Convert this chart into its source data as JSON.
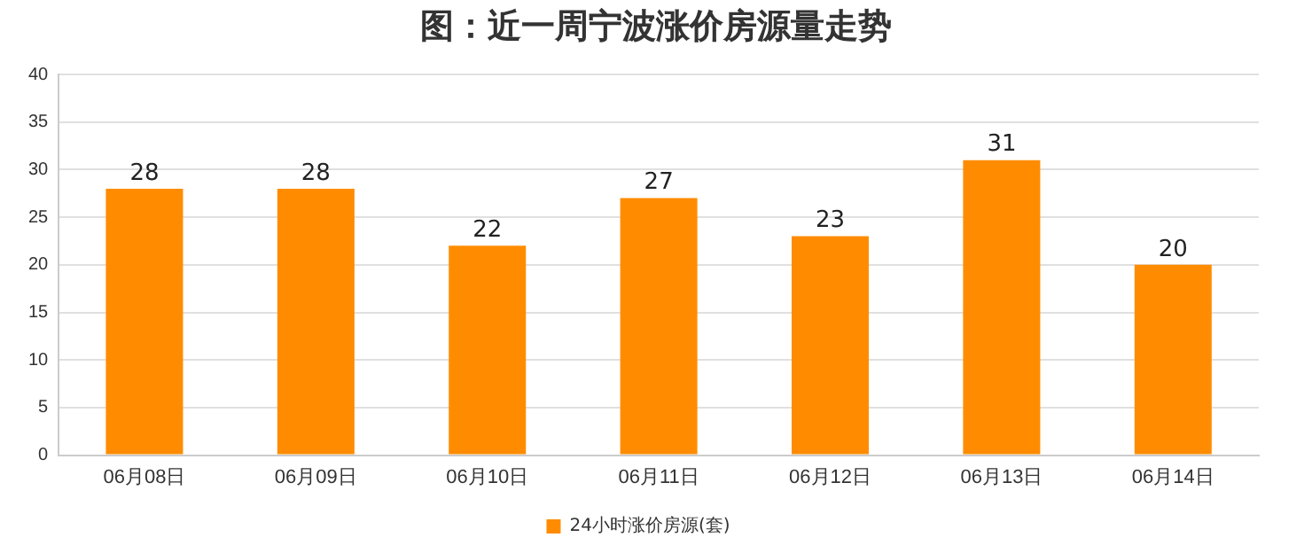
{
  "chart_data": {
    "type": "bar",
    "title": "图：近一周宁波涨价房源量走势",
    "categories": [
      "06月08日",
      "06月09日",
      "06月10日",
      "06月11日",
      "06月12日",
      "06月13日",
      "06月14日"
    ],
    "series": [
      {
        "name": "24小时涨价房源(套)",
        "color": "#ff8c00",
        "values": [
          28,
          28,
          22,
          27,
          23,
          31,
          20
        ]
      }
    ],
    "ylim": [
      0,
      40
    ],
    "yticks": [
      0,
      5,
      10,
      15,
      20,
      25,
      30,
      35,
      40
    ],
    "grid": "y",
    "legend": "bottom",
    "data_labels": true
  }
}
